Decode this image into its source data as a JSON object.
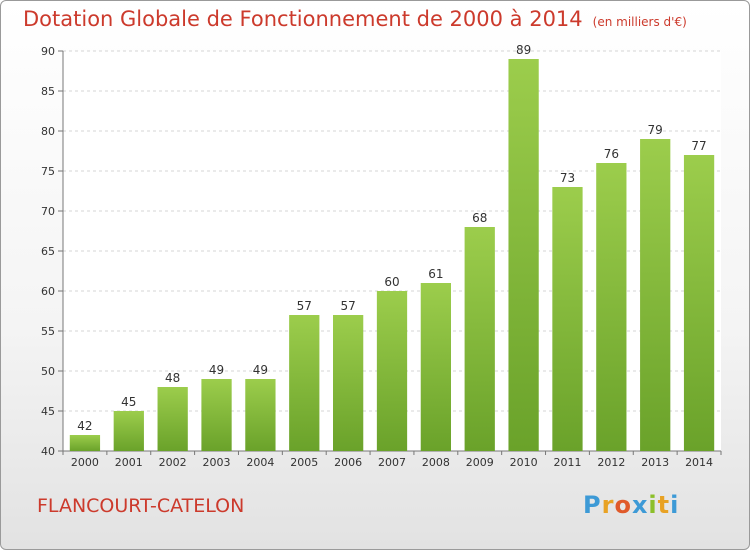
{
  "title": "Dotation Globale de Fonctionnement de 2000 à 2014",
  "unit": "(en milliers d'€)",
  "place": "FLANCOURT-CATELON",
  "brand": {
    "letters": [
      "P",
      "r",
      "o",
      "x",
      "i",
      "t",
      "i"
    ],
    "colors": [
      "#3d9ad6",
      "#e8a224",
      "#e05a2a",
      "#3d9ad6",
      "#8cbf2a",
      "#e8a224",
      "#3d9ad6"
    ]
  },
  "colors": {
    "bar_top": "#9ccd4c",
    "bar_bottom": "#6aa22a",
    "title": "#cc3a2c"
  },
  "chart_data": {
    "type": "bar",
    "categories": [
      "2000",
      "2001",
      "2002",
      "2003",
      "2004",
      "2005",
      "2006",
      "2007",
      "2008",
      "2009",
      "2010",
      "2011",
      "2012",
      "2013",
      "2014"
    ],
    "values": [
      42,
      45,
      48,
      49,
      49,
      57,
      57,
      60,
      61,
      68,
      89,
      73,
      76,
      79,
      77
    ],
    "ylim": [
      40,
      90
    ],
    "yticks": [
      40,
      45,
      50,
      55,
      60,
      65,
      70,
      75,
      80,
      85,
      90
    ],
    "grid": true
  }
}
